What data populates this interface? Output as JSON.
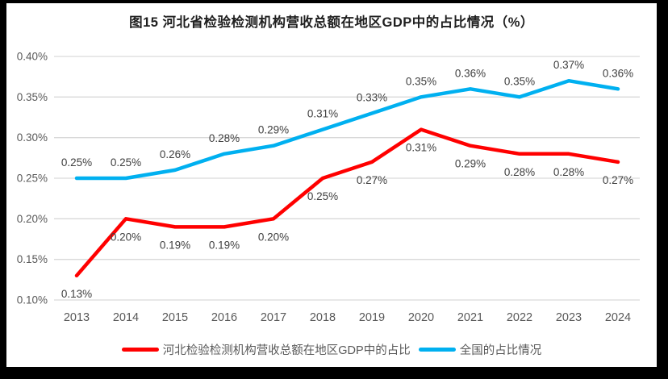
{
  "title": "图15 河北省检验检测机构营收总额在地区GDP中的占比情况（%）",
  "chart_data": {
    "type": "line",
    "title": "图15 河北省检验检测机构营收总额在地区GDP中的占比情况（%）",
    "x_categories": [
      "2013",
      "2014",
      "2015",
      "2016",
      "2017",
      "2018",
      "2019",
      "2020",
      "2021",
      "2022",
      "2023",
      "2024"
    ],
    "series": [
      {
        "name": "河北检验检测机构营收总额在地区GDP中的占比",
        "color": "#FF0000",
        "values": [
          0.13,
          0.2,
          0.19,
          0.19,
          0.2,
          0.25,
          0.27,
          0.31,
          0.29,
          0.28,
          0.28,
          0.27
        ],
        "point_labels": [
          "0.13%",
          "0.20%",
          "0.19%",
          "0.19%",
          "0.20%",
          "0.25%",
          "0.27%",
          "0.31%",
          "0.29%",
          "0.28%",
          "0.28%",
          "0.27%"
        ],
        "label_position": "below"
      },
      {
        "name": "全国的占比情况",
        "color": "#00B0F0",
        "values": [
          0.25,
          0.25,
          0.26,
          0.28,
          0.29,
          0.31,
          0.33,
          0.35,
          0.36,
          0.35,
          0.37,
          0.36
        ],
        "point_labels": [
          "0.25%",
          "0.25%",
          "0.26%",
          "0.28%",
          "0.29%",
          "0.31%",
          "0.33%",
          "0.35%",
          "0.36%",
          "0.35%",
          "0.37%",
          "0.36%"
        ],
        "label_position": "above"
      }
    ],
    "y_axis": {
      "min": 0.1,
      "max": 0.4,
      "step": 0.05,
      "tick_labels": [
        "0.10%",
        "0.15%",
        "0.20%",
        "0.25%",
        "0.30%",
        "0.35%",
        "0.40%"
      ]
    },
    "ylim": [
      0.1,
      0.4
    ],
    "grid": true,
    "legend_position": "bottom"
  },
  "colors": {
    "frame": "#000000",
    "canvas": "#FFFFFF",
    "gridline": "#D9D9D9",
    "axis_text": "#595959",
    "data_label_text": "#404040",
    "title_text": "#1F1F1F"
  }
}
